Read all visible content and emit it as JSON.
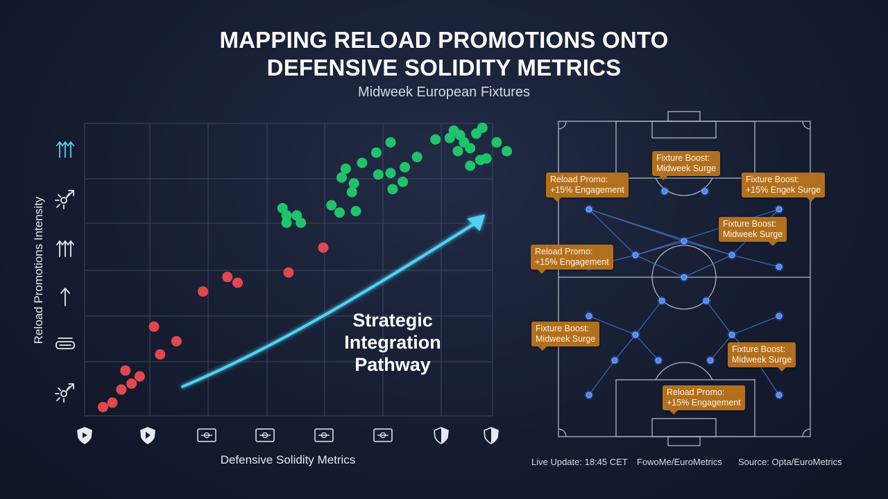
{
  "title": {
    "line1": "MAPPING RELOAD PROMOTIONS ONTO",
    "line2": "DEFENSIVE SOLIDITY METRICS"
  },
  "subtitle": "Midweek European Fixtures",
  "chart_data": {
    "type": "scatter",
    "xlabel": "Defensive Solidity Metrics",
    "ylabel": "Reload Promotions Intensity",
    "xlim": [
      0,
      10
    ],
    "ylim": [
      0,
      10
    ],
    "grid": true,
    "x_tick_icons": [
      "shield-icon",
      "shield-play-icon",
      "ticket-icon",
      "ticket-icon",
      "ticket-icon",
      "ticket-icon",
      "half-shield-icon",
      "half-shield-icon"
    ],
    "y_tick_icons": [
      "broken-arrow-icon",
      "cycle-arrows-icon",
      "single-arrow-icon",
      "double-arrow-icon",
      "burst-arrow-icon",
      "upward-arrows-icon"
    ],
    "series": [
      {
        "color": "#e0474f",
        "points": [
          [
            0.45,
            0.3
          ],
          [
            0.68,
            0.45
          ],
          [
            0.9,
            0.9
          ],
          [
            1.0,
            1.55
          ],
          [
            1.15,
            1.1
          ],
          [
            1.35,
            1.35
          ],
          [
            1.7,
            3.05
          ],
          [
            1.85,
            2.1
          ],
          [
            2.25,
            2.55
          ],
          [
            2.9,
            4.25
          ],
          [
            3.5,
            4.75
          ],
          [
            3.75,
            4.55
          ],
          [
            5.0,
            4.9
          ],
          [
            5.85,
            5.75
          ]
        ]
      },
      {
        "color": "#1fc36a",
        "points": [
          [
            4.85,
            7.1
          ],
          [
            4.95,
            6.85
          ],
          [
            5.2,
            6.85
          ],
          [
            5.3,
            6.6
          ],
          [
            4.95,
            6.6
          ],
          [
            6.05,
            7.2
          ],
          [
            6.25,
            6.95
          ],
          [
            6.65,
            7.0
          ],
          [
            6.3,
            8.15
          ],
          [
            6.6,
            7.95
          ],
          [
            6.55,
            7.65
          ],
          [
            6.4,
            8.45
          ],
          [
            6.8,
            8.65
          ],
          [
            7.2,
            8.25
          ],
          [
            7.55,
            7.75
          ],
          [
            7.5,
            8.3
          ],
          [
            7.8,
            8.0
          ],
          [
            7.85,
            8.5
          ],
          [
            8.15,
            8.85
          ],
          [
            7.15,
            9.0
          ],
          [
            7.5,
            9.35
          ],
          [
            8.6,
            9.45
          ],
          [
            8.95,
            9.5
          ],
          [
            9.2,
            9.6
          ],
          [
            9.3,
            9.35
          ],
          [
            9.15,
            9.05
          ],
          [
            9.45,
            9.15
          ],
          [
            9.6,
            9.65
          ],
          [
            9.7,
            8.75
          ],
          [
            9.45,
            8.55
          ],
          [
            9.85,
            8.8
          ],
          [
            10.1,
            9.35
          ],
          [
            10.35,
            9.05
          ],
          [
            9.75,
            9.85
          ],
          [
            9.05,
            9.75
          ]
        ]
      }
    ],
    "trend_arrow": {
      "label_lines": [
        "Strategic",
        "Integration",
        "Pathway"
      ],
      "color": "#4fd2f5",
      "path": [
        [
          2.4,
          1.0
        ],
        [
          4.8,
          2.4
        ],
        [
          7.2,
          4.5
        ],
        [
          9.65,
          6.65
        ]
      ]
    }
  },
  "pitch": {
    "labels": [
      {
        "line1": "Fixture Boost:",
        "line2": "Midweek Surge"
      },
      {
        "line1": "Reload Promo:",
        "line2": "+15% Engagement"
      },
      {
        "line1": "Fixture Boost:",
        "line2": "+15% Engek Surge"
      },
      {
        "line1": "Fixture Boost:",
        "line2": "Midweek Surge"
      },
      {
        "line1": "Reload Promo:",
        "line2": "+15% Engagement"
      },
      {
        "line1": "Fixture Boost:",
        "line2": "Midweek Surge"
      },
      {
        "line1": "Fixture Boost:",
        "line2": "Midweek Surge"
      },
      {
        "line1": "Reload Promo:",
        "line2": "+15% Engagement"
      }
    ]
  },
  "footer": {
    "update": "Live Update: 18:45 CET",
    "handle": "FowoMe/EuroMetrics",
    "source": "Source: Opta/EuroMetrics"
  }
}
